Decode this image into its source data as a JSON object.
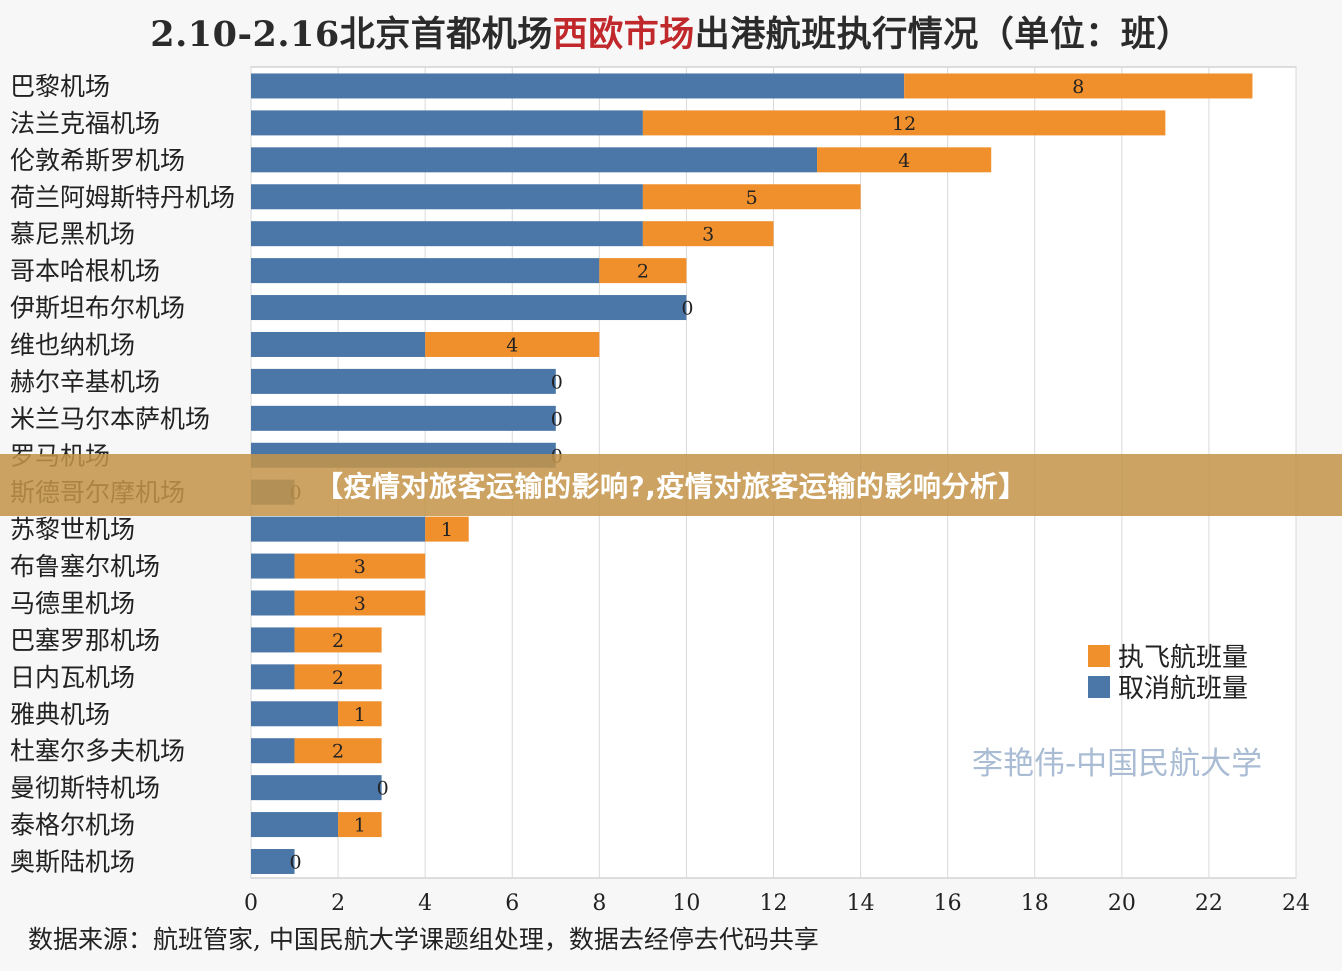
{
  "page": {
    "title_part1": "2.10-2.16北京首都机场",
    "title_highlight": "西欧市场",
    "title_part2": "出港航班执行情况（单位：班）",
    "banner": "【疫情对旅客运输的影响?,疫情对旅客运输的影响分析】",
    "watermark": "李艳伟-中国民航大学",
    "source": "数据来源：航班管家, 中国民航大学课题组处理，数据去经停去代码共享"
  },
  "colors": {
    "cancelled": "#4b77a8",
    "executed": "#f0902c",
    "grid": "#d9d9d9",
    "axis": "#bfbfbf"
  },
  "chart_data": {
    "type": "bar",
    "orientation": "horizontal",
    "stacked": true,
    "title": "2.10-2.16北京首都机场西欧市场出港航班执行情况（单位：班）",
    "xlim": [
      0,
      24
    ],
    "xticks": [
      0,
      2,
      4,
      6,
      8,
      10,
      12,
      14,
      16,
      18,
      20,
      22,
      24
    ],
    "grid": "vertical",
    "legend_position": "right",
    "categories": [
      "巴黎机场",
      "法兰克福机场",
      "伦敦希斯罗机场",
      "荷兰阿姆斯特丹机场",
      "慕尼黑机场",
      "哥本哈根机场",
      "伊斯坦布尔机场",
      "维也纳机场",
      "赫尔辛基机场",
      "米兰马尔本萨机场",
      "罗马机场",
      "斯德哥尔摩机场",
      "苏黎世机场",
      "布鲁塞尔机场",
      "马德里机场",
      "巴塞罗那机场",
      "日内瓦机场",
      "雅典机场",
      "杜塞尔多夫机场",
      "曼彻斯特机场",
      "泰格尔机场",
      "奥斯陆机场"
    ],
    "series": [
      {
        "name": "取消航班量",
        "values": [
          15,
          9,
          13,
          9,
          9,
          8,
          10,
          4,
          7,
          7,
          7,
          1,
          4,
          1,
          1,
          1,
          1,
          2,
          1,
          3,
          2,
          1
        ]
      },
      {
        "name": "执飞航班量",
        "values": [
          8,
          12,
          4,
          5,
          3,
          2,
          0,
          4,
          0,
          0,
          0,
          0,
          1,
          3,
          3,
          2,
          2,
          1,
          2,
          0,
          1,
          0
        ]
      }
    ],
    "legend_order": [
      "执飞航班量",
      "取消航班量"
    ]
  }
}
